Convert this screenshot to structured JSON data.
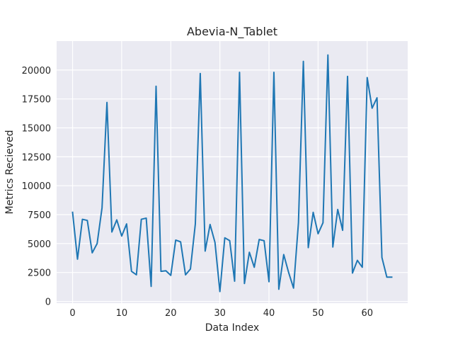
{
  "chart_data": {
    "type": "line",
    "title": "Abevia-N_Tablet",
    "xlabel": "Data Index",
    "ylabel": "Metrics Recieved",
    "xlim": [
      -3.25,
      68.25
    ],
    "ylim": [
      -150,
      22500
    ],
    "xticks": [
      0,
      10,
      20,
      30,
      40,
      50,
      60
    ],
    "yticks": [
      0,
      2500,
      5000,
      7500,
      10000,
      12500,
      15000,
      17500,
      20000
    ],
    "grid": true,
    "background": "#eaeaf2",
    "series_color": "#1f77b4",
    "series": [
      {
        "x": [
          0,
          1,
          2,
          3,
          4,
          5,
          6,
          7,
          8,
          9,
          10,
          11,
          12,
          13,
          14,
          15,
          16,
          17,
          18,
          19,
          20,
          21,
          22,
          23,
          24,
          25,
          26,
          27,
          28,
          29,
          30,
          31,
          32,
          33,
          34,
          35,
          36,
          37,
          38,
          39,
          40,
          41,
          42,
          43,
          44,
          45,
          46,
          47,
          48,
          49,
          50,
          51,
          52,
          53,
          54,
          55,
          56,
          57,
          58,
          59,
          60,
          61,
          62,
          63,
          64,
          65
        ],
        "values": [
          7700,
          3650,
          7100,
          7000,
          4200,
          5000,
          8100,
          17200,
          6000,
          7050,
          5650,
          6700,
          2600,
          2300,
          7100,
          7200,
          1300,
          18600,
          2600,
          2650,
          2250,
          5300,
          5150,
          2300,
          2800,
          6700,
          19700,
          4350,
          6650,
          5100,
          850,
          5500,
          5250,
          1750,
          19800,
          1550,
          4250,
          2950,
          5350,
          5250,
          1700,
          19800,
          1050,
          4050,
          2500,
          1150,
          6800,
          20750,
          4650,
          7700,
          5850,
          6800,
          21300,
          4700,
          7950,
          6150,
          19450,
          2450,
          3550,
          2950,
          19350,
          16700,
          17600,
          3800,
          2100,
          2100
        ]
      }
    ]
  }
}
